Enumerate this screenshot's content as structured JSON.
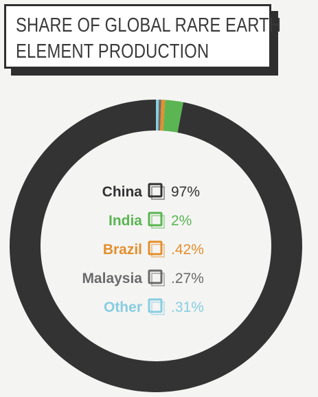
{
  "title": {
    "line1": "SHARE OF GLOBAL RARE EARTH",
    "line2": "ELEMENT PRODUCTION"
  },
  "chart_data": {
    "type": "donut",
    "title": "SHARE OF GLOBAL RARE EARTH ELEMENT PRODUCTION",
    "slices": [
      {
        "name": "China",
        "label": "97%",
        "value": 97,
        "color": "#333333"
      },
      {
        "name": "India",
        "label": "2%",
        "value": 2,
        "color": "#5ab552"
      },
      {
        "name": "Brazil",
        "label": ".42%",
        "value": 0.42,
        "color": "#e38f2c"
      },
      {
        "name": "Malaysia",
        "label": ".27%",
        "value": 0.27,
        "color": "#6a6a6a"
      },
      {
        "name": "Other",
        "label": ".31%",
        "value": 0.31,
        "color": "#87cde0"
      }
    ],
    "legend_position": "center"
  }
}
